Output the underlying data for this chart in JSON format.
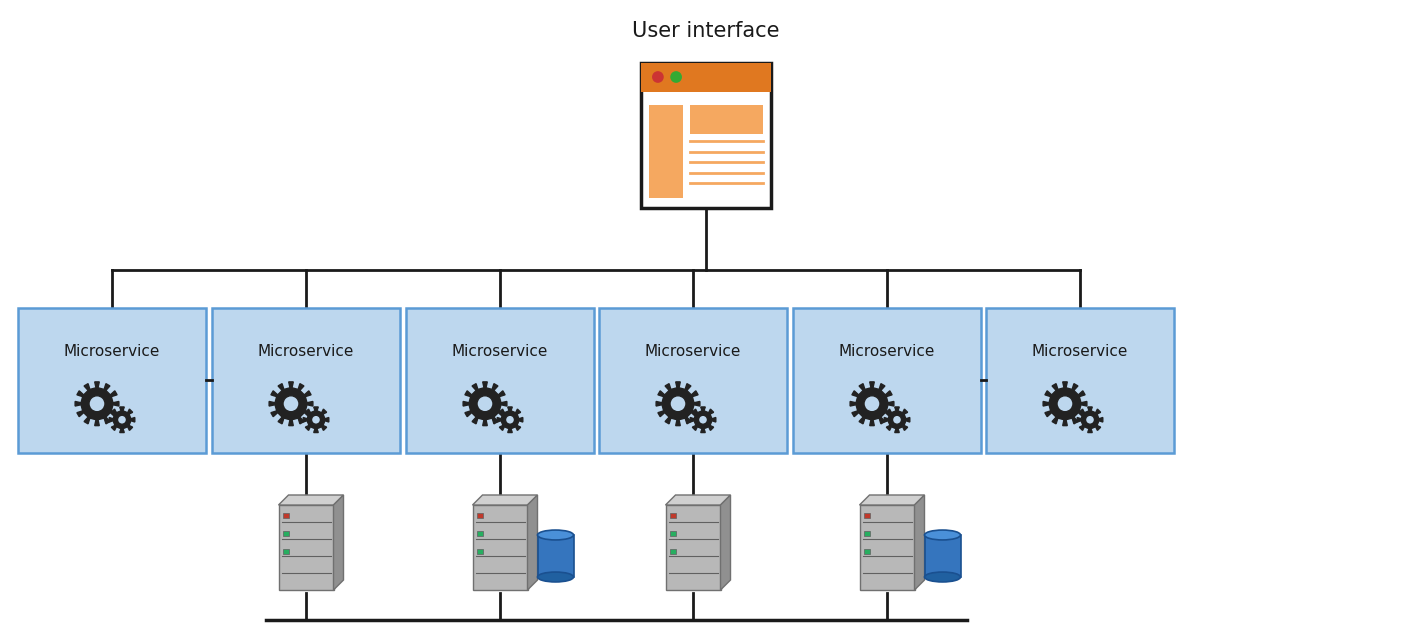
{
  "title": "User interface",
  "bg_color": "#ffffff",
  "microservice_box_color": "#bdd7ee",
  "microservice_box_edge": "#5b9bd5",
  "microservice_text": "Microservice",
  "ui_header_color": "#e07820",
  "ui_body_color": "#fce4c8",
  "ui_sidebar_color": "#f5a860",
  "ui_line_color": "#f5a860",
  "dot_red": "#cc3333",
  "dot_green": "#33aa33",
  "gear_fill": "#ffffff",
  "gear_edge": "#222222",
  "gear_tooth_fill": "#222222",
  "server_front": "#b8b8b8",
  "server_top": "#d0d0d0",
  "server_right": "#909090",
  "server_edge": "#707070",
  "server_slot": "#606060",
  "db_body": "#3575be",
  "db_top": "#4a90d9",
  "db_bottom": "#2060a0",
  "db_edge": "#1a5090",
  "line_color": "#1a1a1a",
  "text_color": "#1a1a1a",
  "title_fontsize": 15,
  "ms_fontsize": 11
}
